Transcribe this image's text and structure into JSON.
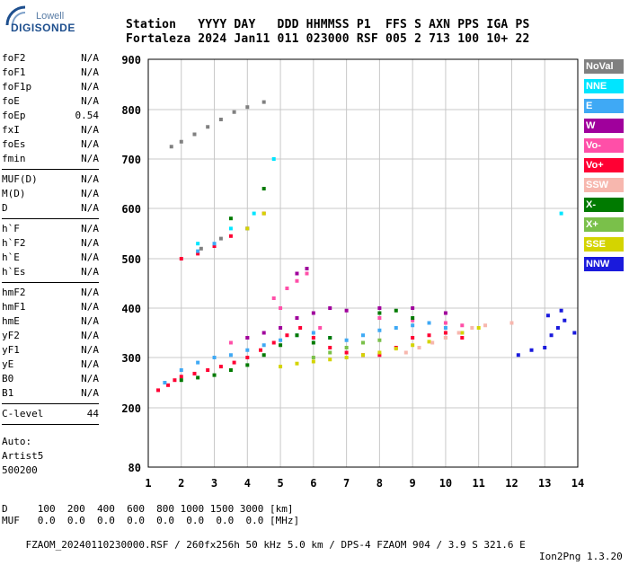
{
  "logo": {
    "line1": "Lowell",
    "line2": "DIGISONDE"
  },
  "header": {
    "line1": "Station   YYYY DAY   DDD HHMMSS P1  FFS S AXN PPS IGA PS",
    "line2": "Fortaleza 2024 Jan11 011 023000 RSF 005 2 713 100 10+ 22"
  },
  "params": {
    "group1": [
      {
        "name": "foF2",
        "value": "N/A"
      },
      {
        "name": "foF1",
        "value": "N/A"
      },
      {
        "name": "foF1p",
        "value": "N/A"
      },
      {
        "name": "foE",
        "value": "N/A"
      },
      {
        "name": "foEp",
        "value": "0.54"
      },
      {
        "name": "fxI",
        "value": "N/A"
      },
      {
        "name": "foEs",
        "value": "N/A"
      },
      {
        "name": "fmin",
        "value": "N/A"
      }
    ],
    "group2": [
      {
        "name": "MUF(D)",
        "value": "N/A"
      },
      {
        "name": "M(D)",
        "value": "N/A"
      },
      {
        "name": "D",
        "value": "N/A"
      }
    ],
    "group3": [
      {
        "name": "h`F",
        "value": "N/A"
      },
      {
        "name": "h`F2",
        "value": "N/A"
      },
      {
        "name": "h`E",
        "value": "N/A"
      },
      {
        "name": "h`Es",
        "value": "N/A"
      }
    ],
    "group4": [
      {
        "name": "hmF2",
        "value": "N/A"
      },
      {
        "name": "hmF1",
        "value": "N/A"
      },
      {
        "name": "hmE",
        "value": "N/A"
      },
      {
        "name": "yF2",
        "value": "N/A"
      },
      {
        "name": "yF1",
        "value": "N/A"
      },
      {
        "name": "yE",
        "value": "N/A"
      },
      {
        "name": "B0",
        "value": "N/A"
      },
      {
        "name": "B1",
        "value": "N/A"
      }
    ],
    "clevel": {
      "name": "C-level",
      "value": "44"
    }
  },
  "auto": {
    "line1": "Auto:",
    "line2": "Artist5",
    "line3": "500200"
  },
  "footer": {
    "line1": "D     100  200  400  600  800 1000 1500 3000 [km]",
    "line2": "MUF   0.0  0.0  0.0  0.0  0.0  0.0  0.0  0.0 [MHz]",
    "line3": "FZAOM_20240110230000.RSF / 260fx256h 50 kHz 5.0 km / DPS-4 FZAOM 904 / 3.9 S 321.6 E",
    "line3_right": "Ion2Png 1.3.20"
  },
  "legend": [
    {
      "label": "NoVal",
      "color": "#808080"
    },
    {
      "label": "NNE",
      "color": "#00e5ff"
    },
    {
      "label": "E",
      "color": "#3fa9f5"
    },
    {
      "label": "W",
      "color": "#a0009c"
    },
    {
      "label": "Vo-",
      "color": "#ff4fa8"
    },
    {
      "label": "Vo+",
      "color": "#ff0033"
    },
    {
      "label": "SSW",
      "color": "#f7b7ae"
    },
    {
      "label": "X-",
      "color": "#007a00"
    },
    {
      "label": "X+",
      "color": "#7ac04a"
    },
    {
      "label": "SSE",
      "color": "#d4d400"
    },
    {
      "label": "NNW",
      "color": "#1a1adc"
    }
  ],
  "chart_data": {
    "type": "scatter",
    "xlabel": "",
    "ylabel": "",
    "xlim": [
      1,
      14
    ],
    "ylim": [
      80,
      900
    ],
    "x_ticks": [
      "1",
      "2",
      "3",
      "4",
      "5",
      "6",
      "7",
      "8",
      "9",
      "10",
      "11",
      "12",
      "13",
      "14"
    ],
    "y_ticks": [
      "80",
      "200",
      "300",
      "400",
      "500",
      "600",
      "700",
      "800",
      "900"
    ],
    "y_tick_values": [
      80,
      200,
      300,
      400,
      500,
      600,
      700,
      800,
      900
    ],
    "grid": true,
    "legend_position": "right",
    "series": [
      {
        "name": "Vo+",
        "color": "#ff0033",
        "points": [
          [
            1.3,
            235
          ],
          [
            1.6,
            245
          ],
          [
            1.8,
            255
          ],
          [
            2.0,
            262
          ],
          [
            2.4,
            268
          ],
          [
            2.8,
            275
          ],
          [
            3.2,
            282
          ],
          [
            3.6,
            290
          ],
          [
            4.0,
            300
          ],
          [
            4.4,
            315
          ],
          [
            4.8,
            330
          ],
          [
            5.2,
            345
          ],
          [
            5.6,
            360
          ],
          [
            6.0,
            340
          ],
          [
            6.5,
            320
          ],
          [
            7.0,
            310
          ],
          [
            7.5,
            305
          ],
          [
            8.0,
            305
          ],
          [
            8.5,
            320
          ],
          [
            9.0,
            340
          ],
          [
            9.5,
            345
          ],
          [
            10.0,
            350
          ],
          [
            10.5,
            340
          ],
          [
            2.0,
            500
          ],
          [
            2.5,
            510
          ],
          [
            3.0,
            525
          ],
          [
            3.5,
            545
          ],
          [
            4.0,
            560
          ],
          [
            4.5,
            590
          ]
        ]
      },
      {
        "name": "E",
        "color": "#3fa9f5",
        "points": [
          [
            1.5,
            250
          ],
          [
            2.0,
            275
          ],
          [
            2.5,
            290
          ],
          [
            3.0,
            300
          ],
          [
            3.5,
            305
          ],
          [
            4.0,
            315
          ],
          [
            4.5,
            325
          ],
          [
            5.0,
            335
          ],
          [
            5.5,
            345
          ],
          [
            6.0,
            350
          ],
          [
            6.5,
            340
          ],
          [
            7.0,
            335
          ],
          [
            7.5,
            345
          ],
          [
            8.0,
            355
          ],
          [
            8.5,
            360
          ],
          [
            9.0,
            365
          ],
          [
            9.5,
            370
          ],
          [
            10.0,
            360
          ],
          [
            10.5,
            350
          ],
          [
            2.5,
            515
          ],
          [
            3.0,
            530
          ],
          [
            4.0,
            560
          ]
        ]
      },
      {
        "name": "Vo-",
        "color": "#ff4fa8",
        "points": [
          [
            4.8,
            420
          ],
          [
            5.2,
            440
          ],
          [
            5.5,
            455
          ],
          [
            5.8,
            470
          ],
          [
            5.0,
            400
          ],
          [
            3.5,
            330
          ],
          [
            4.0,
            340
          ],
          [
            6.2,
            360
          ],
          [
            8.0,
            380
          ],
          [
            9.0,
            375
          ],
          [
            10.0,
            370
          ],
          [
            10.5,
            365
          ]
        ]
      },
      {
        "name": "SSE",
        "color": "#d4d400",
        "points": [
          [
            5.0,
            282
          ],
          [
            5.5,
            288
          ],
          [
            6.0,
            292
          ],
          [
            6.5,
            296
          ],
          [
            7.0,
            300
          ],
          [
            7.5,
            305
          ],
          [
            8.0,
            310
          ],
          [
            8.5,
            318
          ],
          [
            9.0,
            325
          ],
          [
            9.5,
            332
          ],
          [
            10.0,
            340
          ],
          [
            10.5,
            350
          ],
          [
            11.0,
            360
          ],
          [
            4.0,
            560
          ],
          [
            4.5,
            590
          ]
        ]
      },
      {
        "name": "SSW",
        "color": "#f7b7ae",
        "points": [
          [
            8.8,
            310
          ],
          [
            9.2,
            320
          ],
          [
            9.6,
            330
          ],
          [
            10.0,
            340
          ],
          [
            10.4,
            350
          ],
          [
            10.8,
            360
          ],
          [
            11.2,
            365
          ],
          [
            12.0,
            370
          ]
        ]
      },
      {
        "name": "X-",
        "color": "#007a00",
        "points": [
          [
            2.0,
            255
          ],
          [
            2.5,
            260
          ],
          [
            3.0,
            265
          ],
          [
            3.5,
            275
          ],
          [
            4.0,
            285
          ],
          [
            4.5,
            305
          ],
          [
            5.0,
            325
          ],
          [
            5.5,
            345
          ],
          [
            6.0,
            330
          ],
          [
            6.5,
            340
          ],
          [
            8.0,
            390
          ],
          [
            8.5,
            395
          ],
          [
            9.0,
            380
          ],
          [
            4.5,
            640
          ],
          [
            3.5,
            580
          ]
        ]
      },
      {
        "name": "X+",
        "color": "#7ac04a",
        "points": [
          [
            6.0,
            300
          ],
          [
            6.5,
            310
          ],
          [
            7.0,
            320
          ],
          [
            7.5,
            330
          ],
          [
            8.0,
            335
          ]
        ]
      },
      {
        "name": "W",
        "color": "#a0009c",
        "points": [
          [
            4.0,
            340
          ],
          [
            4.5,
            350
          ],
          [
            5.0,
            360
          ],
          [
            5.5,
            380
          ],
          [
            6.0,
            390
          ],
          [
            6.5,
            400
          ],
          [
            7.0,
            395
          ],
          [
            8.0,
            400
          ],
          [
            9.0,
            400
          ],
          [
            10.0,
            390
          ],
          [
            5.5,
            470
          ],
          [
            5.8,
            480
          ]
        ]
      },
      {
        "name": "NNE",
        "color": "#00e5ff",
        "points": [
          [
            2.5,
            530
          ],
          [
            3.5,
            560
          ],
          [
            4.2,
            590
          ],
          [
            4.8,
            700
          ],
          [
            13.5,
            590
          ]
        ]
      },
      {
        "name": "NNW",
        "color": "#1a1adc",
        "points": [
          [
            12.2,
            305
          ],
          [
            12.6,
            315
          ],
          [
            13.0,
            320
          ],
          [
            13.2,
            345
          ],
          [
            13.4,
            360
          ],
          [
            13.6,
            375
          ],
          [
            13.9,
            350
          ],
          [
            13.1,
            385
          ],
          [
            13.5,
            395
          ]
        ]
      },
      {
        "name": "NoVal",
        "color": "#808080",
        "points": [
          [
            1.7,
            725
          ],
          [
            2.0,
            735
          ],
          [
            2.4,
            750
          ],
          [
            2.8,
            765
          ],
          [
            3.2,
            780
          ],
          [
            3.6,
            795
          ],
          [
            4.0,
            805
          ],
          [
            4.5,
            815
          ],
          [
            2.6,
            520
          ],
          [
            3.2,
            540
          ]
        ]
      }
    ]
  }
}
